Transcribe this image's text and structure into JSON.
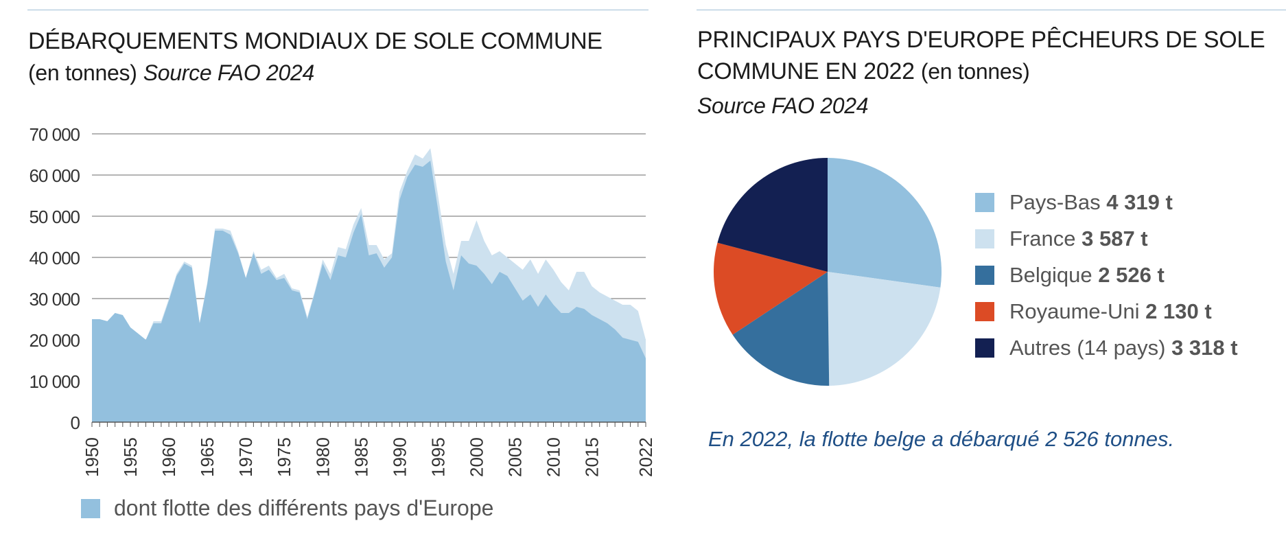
{
  "left": {
    "title_main": "DÉBARQUEMENTS MONDIAUX DE SOLE COMMUNE",
    "title_sub": "(en tonnes)",
    "title_source": "Source FAO 2024",
    "legend_label": "dont flotte des différents pays d'Europe",
    "legend_color": "#93c0de"
  },
  "right": {
    "title_line1": "PRINCIPAUX PAYS D'EUROPE PÊCHEURS DE SOLE",
    "title_line2_main": "COMMUNE EN 2022",
    "title_line2_sub": "(en tonnes)",
    "title_source": "Source FAO 2024",
    "note": "En 2022, la flotte belge a débarqué 2 526 tonnes."
  },
  "chart_data": [
    {
      "type": "area",
      "ylim": [
        0,
        70000
      ],
      "yticks": [
        0,
        10000,
        20000,
        30000,
        40000,
        50000,
        60000,
        70000
      ],
      "ytick_labels": [
        "0",
        "10 000",
        "20 000",
        "30 000",
        "40 000",
        "50 000",
        "60 000",
        "70 000"
      ],
      "xlim": [
        1950,
        2022
      ],
      "xtick_labels": [
        "1950",
        "1955",
        "1960",
        "1965",
        "1970",
        "1975",
        "1980",
        "1985",
        "1990",
        "1995",
        "2000",
        "2005",
        "2010",
        "2015",
        "2022"
      ],
      "grid": true,
      "colors": {
        "total": "#cde1ef",
        "europe": "#93c0de"
      },
      "series": [
        {
          "key": "total",
          "values": [
            25000,
            25000,
            24500,
            26500,
            26000,
            23000,
            21500,
            20000,
            24500,
            24500,
            30000,
            36000,
            39000,
            38000,
            24000,
            34000,
            47000,
            47000,
            46500,
            41500,
            35000,
            41500,
            37000,
            38000,
            35000,
            36000,
            32500,
            32000,
            25500,
            32000,
            39500,
            36000,
            42500,
            42000,
            48000,
            52000,
            43000,
            43000,
            39500,
            41000,
            56000,
            61000,
            65000,
            64000,
            66500,
            55000,
            43000,
            36000,
            44000,
            44000,
            49000,
            44000,
            40500,
            41500,
            40000,
            38500,
            37000,
            39500,
            36000,
            39500,
            37000,
            34000,
            32000,
            36500,
            36500,
            33000,
            31500,
            30500,
            29500,
            28500,
            28500,
            27000,
            20000
          ]
        },
        {
          "key": "europe",
          "name": "dont flotte des différents pays d'Europe",
          "values": [
            25000,
            25000,
            24500,
            26500,
            26000,
            23000,
            21500,
            20000,
            24000,
            24000,
            29500,
            35500,
            38500,
            37500,
            24000,
            33500,
            46500,
            46500,
            45500,
            41000,
            35000,
            41000,
            36000,
            37000,
            34500,
            35000,
            32000,
            31500,
            25000,
            31500,
            38500,
            34500,
            40500,
            40000,
            46000,
            50500,
            40500,
            41000,
            37500,
            40000,
            54000,
            59500,
            62500,
            62000,
            63500,
            51500,
            39000,
            32000,
            40500,
            38500,
            38000,
            36000,
            33500,
            36500,
            35500,
            32500,
            29500,
            31000,
            28000,
            31000,
            28500,
            26500,
            26500,
            28000,
            27500,
            26000,
            25000,
            24000,
            22500,
            20500,
            20000,
            19500,
            15500
          ]
        }
      ]
    },
    {
      "type": "pie",
      "slices": [
        {
          "label": "Pays-Bas",
          "value": 4319,
          "value_text": "4 319 t",
          "color": "#93c0de"
        },
        {
          "label": "France",
          "value": 3587,
          "value_text": "3 587 t",
          "color": "#cde1ef"
        },
        {
          "label": "Belgique",
          "value": 2526,
          "value_text": "2 526 t",
          "color": "#356f9d"
        },
        {
          "label": "Royaume-Uni",
          "value": 2130,
          "value_text": "2 130 t",
          "color": "#dc4b25"
        },
        {
          "label": "Autres (14 pays)",
          "value": 3318,
          "value_text": "3 318 t",
          "color": "#132052"
        }
      ]
    }
  ]
}
